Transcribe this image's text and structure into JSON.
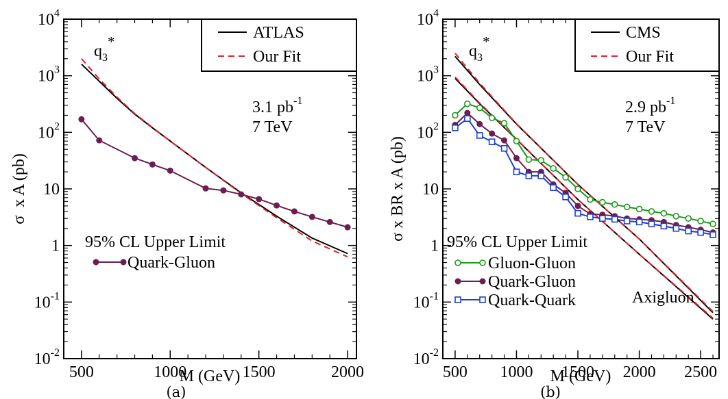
{
  "chart_data": [
    {
      "panel_label": "(a)",
      "type": "line",
      "xlabel": "M (GeV)",
      "ylabel": "σ  x A (pb)",
      "xlim": [
        400,
        2050
      ],
      "ylim": [
        0.01,
        10000
      ],
      "yscale": "log",
      "xticks": [
        "500",
        "1000",
        "1500",
        "2000"
      ],
      "xtick_values": [
        500,
        1000,
        1500,
        2000
      ],
      "yticks": [
        {
          "value": 0.01,
          "base": "10",
          "exp": "-2"
        },
        {
          "value": 0.1,
          "base": "10",
          "exp": "-1"
        },
        {
          "value": 1,
          "base": "1",
          "exp": ""
        },
        {
          "value": 10,
          "base": "10",
          "exp": ""
        },
        {
          "value": 100,
          "base": "10",
          "exp": "2"
        },
        {
          "value": 1000,
          "base": "10",
          "exp": "3"
        },
        {
          "value": 10000,
          "base": "10",
          "exp": "4"
        }
      ],
      "legend": {
        "position": "top-right",
        "entries": [
          "ATLAS",
          "Our Fit"
        ]
      },
      "annotations": {
        "model": {
          "base": "q",
          "sub": "3",
          "sup": "*"
        },
        "lumi": {
          "value": "3.1 pb",
          "sup": "-1"
        },
        "energy": "7 TeV"
      },
      "limit_legend": {
        "title": "95% CL Upper Limit",
        "entries": [
          "Quark-Gluon"
        ]
      },
      "series": [
        {
          "name": "ATLAS",
          "style": "solid",
          "color": "#000000",
          "x": [
            500,
            600,
            700,
            800,
            900,
            1000,
            1200,
            1400,
            1600,
            1800,
            2000
          ],
          "y": [
            1600,
            800,
            400,
            210,
            120,
            70,
            24,
            8.5,
            3.3,
            1.35,
            0.72
          ]
        },
        {
          "name": "Our Fit",
          "style": "dashed",
          "color": "#e4202c",
          "x": [
            500,
            600,
            700,
            800,
            900,
            1000,
            1200,
            1400,
            1600,
            1800,
            2000
          ],
          "y": [
            2000,
            880,
            420,
            215,
            122,
            70,
            24,
            8.3,
            3.1,
            1.2,
            0.63
          ]
        },
        {
          "name": "Quark-Gluon",
          "style": "filled-circle",
          "color": "#6b1e4f",
          "x": [
            500,
            600,
            800,
            900,
            1000,
            1200,
            1300,
            1400,
            1500,
            1600,
            1700,
            1800,
            1900,
            2000
          ],
          "y": [
            170,
            72,
            35,
            27,
            21,
            10.2,
            9.4,
            8.0,
            6.6,
            5.1,
            4.0,
            3.2,
            2.6,
            2.1
          ]
        }
      ]
    },
    {
      "panel_label": "(b)",
      "type": "line",
      "xlabel": "M (GeV)",
      "ylabel": "σ x BR x A (pb)",
      "xlim": [
        400,
        2650
      ],
      "ylim": [
        0.01,
        10000
      ],
      "yscale": "log",
      "xticks": [
        "500",
        "1000",
        "1500",
        "2000",
        "2500"
      ],
      "xtick_values": [
        500,
        1000,
        1500,
        2000,
        2500
      ],
      "yticks": [
        {
          "value": 0.01,
          "base": "10",
          "exp": "-2"
        },
        {
          "value": 0.1,
          "base": "10",
          "exp": "-1"
        },
        {
          "value": 1,
          "base": "1",
          "exp": ""
        },
        {
          "value": 10,
          "base": "10",
          "exp": ""
        },
        {
          "value": 100,
          "base": "10",
          "exp": "2"
        },
        {
          "value": 1000,
          "base": "10",
          "exp": "3"
        },
        {
          "value": 10000,
          "base": "10",
          "exp": "4"
        }
      ],
      "legend": {
        "position": "top-right",
        "entries": [
          "CMS",
          "Our Fit"
        ]
      },
      "annotations": {
        "model": {
          "base": "q",
          "sub": "3",
          "sup": "*"
        },
        "lumi": {
          "value": "2.9 pb",
          "sup": "-1"
        },
        "energy": "7 TeV",
        "extra": "Axigluon"
      },
      "limit_legend": {
        "title": "95% CL Upper Limit",
        "entries": [
          "Gluon-Gluon",
          "Quark-Gluon",
          "Quark-Quark"
        ]
      },
      "series": [
        {
          "name": "CMS q3*",
          "style": "solid",
          "color": "#000000",
          "x": [
            500,
            700,
            1000,
            1500,
            2000,
            2600
          ],
          "y": [
            2200,
            700,
            140,
            12,
            1.3,
            0.065
          ]
        },
        {
          "name": "Our Fit q3*",
          "style": "dashed",
          "color": "#e4202c",
          "x": [
            500,
            700,
            1000,
            1500,
            2000,
            2600
          ],
          "y": [
            2500,
            740,
            142,
            12,
            1.3,
            0.068
          ]
        },
        {
          "name": "CMS Axigluon",
          "style": "solid",
          "color": "#000000",
          "x": [
            500,
            700,
            1000,
            1500,
            2000,
            2600
          ],
          "y": [
            900,
            320,
            75,
            6.5,
            0.7,
            0.05
          ]
        },
        {
          "name": "Our Fit Axigluon",
          "style": "dashed",
          "color": "#e4202c",
          "x": [
            500,
            700,
            1000,
            1500,
            2000,
            2600
          ],
          "y": [
            950,
            330,
            76,
            6.5,
            0.7,
            0.052
          ]
        },
        {
          "name": "Gluon-Gluon",
          "style": "open-circle",
          "color": "#1a9a1a",
          "x": [
            500,
            600,
            700,
            800,
            900,
            1000,
            1100,
            1200,
            1300,
            1400,
            1500,
            1600,
            1700,
            1800,
            1900,
            2000,
            2100,
            2200,
            2300,
            2400,
            2500,
            2600
          ],
          "y": [
            200,
            320,
            270,
            180,
            145,
            70,
            33,
            32,
            23,
            16,
            10,
            6.5,
            5.8,
            5.3,
            4.8,
            4.4,
            4.0,
            3.7,
            3.3,
            3.0,
            2.7,
            2.4
          ]
        },
        {
          "name": "Quark-Gluon",
          "style": "filled-circle",
          "color": "#6b1e4f",
          "x": [
            500,
            600,
            700,
            800,
            900,
            1000,
            1100,
            1200,
            1300,
            1400,
            1500,
            1600,
            1700,
            1800,
            1900,
            2000,
            2100,
            2200,
            2300,
            2400,
            2500,
            2600
          ],
          "y": [
            135,
            220,
            140,
            95,
            72,
            35,
            20,
            20,
            12,
            8.5,
            5.0,
            3.6,
            3.5,
            3.3,
            3.0,
            2.9,
            2.8,
            2.6,
            2.3,
            2.1,
            1.9,
            1.7
          ]
        },
        {
          "name": "Quark-Quark",
          "style": "open-square",
          "color": "#1c3fd4",
          "x": [
            500,
            600,
            700,
            800,
            900,
            1000,
            1100,
            1200,
            1300,
            1400,
            1500,
            1600,
            1700,
            1800,
            1900,
            2000,
            2100,
            2200,
            2300,
            2400,
            2500,
            2600
          ],
          "y": [
            120,
            175,
            88,
            68,
            52,
            20,
            17,
            17,
            10.5,
            7.2,
            3.7,
            3.2,
            3.0,
            2.9,
            2.7,
            2.6,
            2.4,
            2.2,
            2.0,
            1.8,
            1.7,
            1.55
          ]
        }
      ]
    }
  ]
}
